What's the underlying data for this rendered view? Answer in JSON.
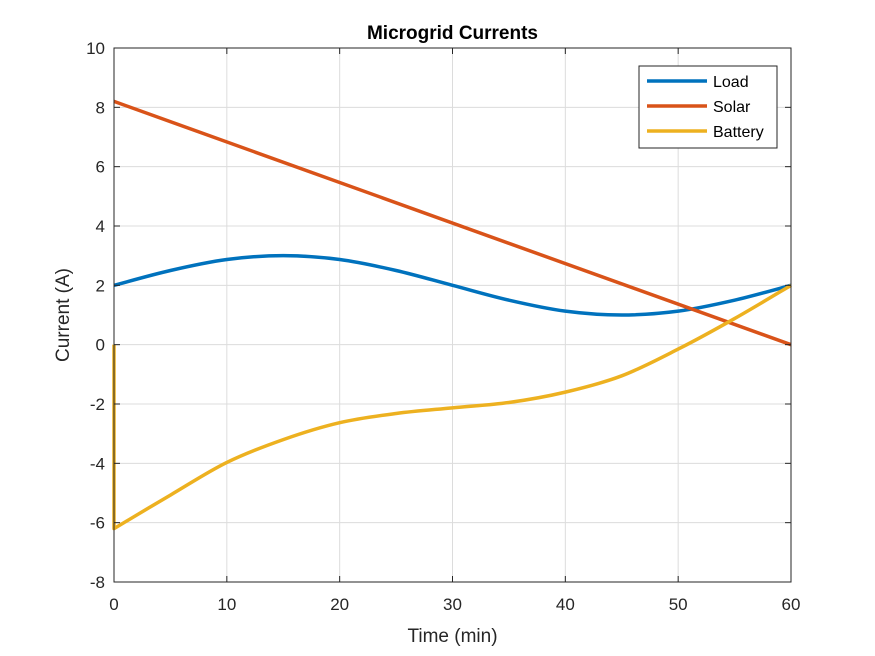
{
  "chart_data": {
    "type": "line",
    "title": "Microgrid Currents",
    "xlabel": "Time (min)",
    "ylabel": "Current (A)",
    "xlim": [
      0,
      60
    ],
    "ylim": [
      -8,
      10
    ],
    "xticks": [
      0,
      10,
      20,
      30,
      40,
      50,
      60
    ],
    "yticks": [
      -8,
      -6,
      -4,
      -2,
      0,
      2,
      4,
      6,
      8,
      10
    ],
    "grid": true,
    "legend_position": "top-right",
    "series": [
      {
        "name": "Load",
        "color": "#0072BD",
        "x": [
          0,
          5,
          10,
          15,
          20,
          25,
          30,
          35,
          40,
          45,
          50,
          55,
          60
        ],
        "y": [
          2.0,
          2.5,
          2.87,
          3.0,
          2.87,
          2.5,
          2.0,
          1.5,
          1.13,
          1.0,
          1.13,
          1.5,
          2.0
        ]
      },
      {
        "name": "Solar",
        "color": "#D95319",
        "x": [
          0,
          60
        ],
        "y": [
          8.2,
          0.0
        ]
      },
      {
        "name": "Battery",
        "color": "#EDB120",
        "x": [
          0,
          0,
          5,
          10,
          15,
          20,
          25,
          30,
          35,
          40,
          45,
          50,
          55,
          60
        ],
        "y": [
          0.0,
          -6.2,
          -5.07,
          -3.97,
          -3.2,
          -2.63,
          -2.32,
          -2.13,
          -1.95,
          -1.6,
          -1.05,
          -0.15,
          0.88,
          2.0
        ]
      }
    ]
  }
}
